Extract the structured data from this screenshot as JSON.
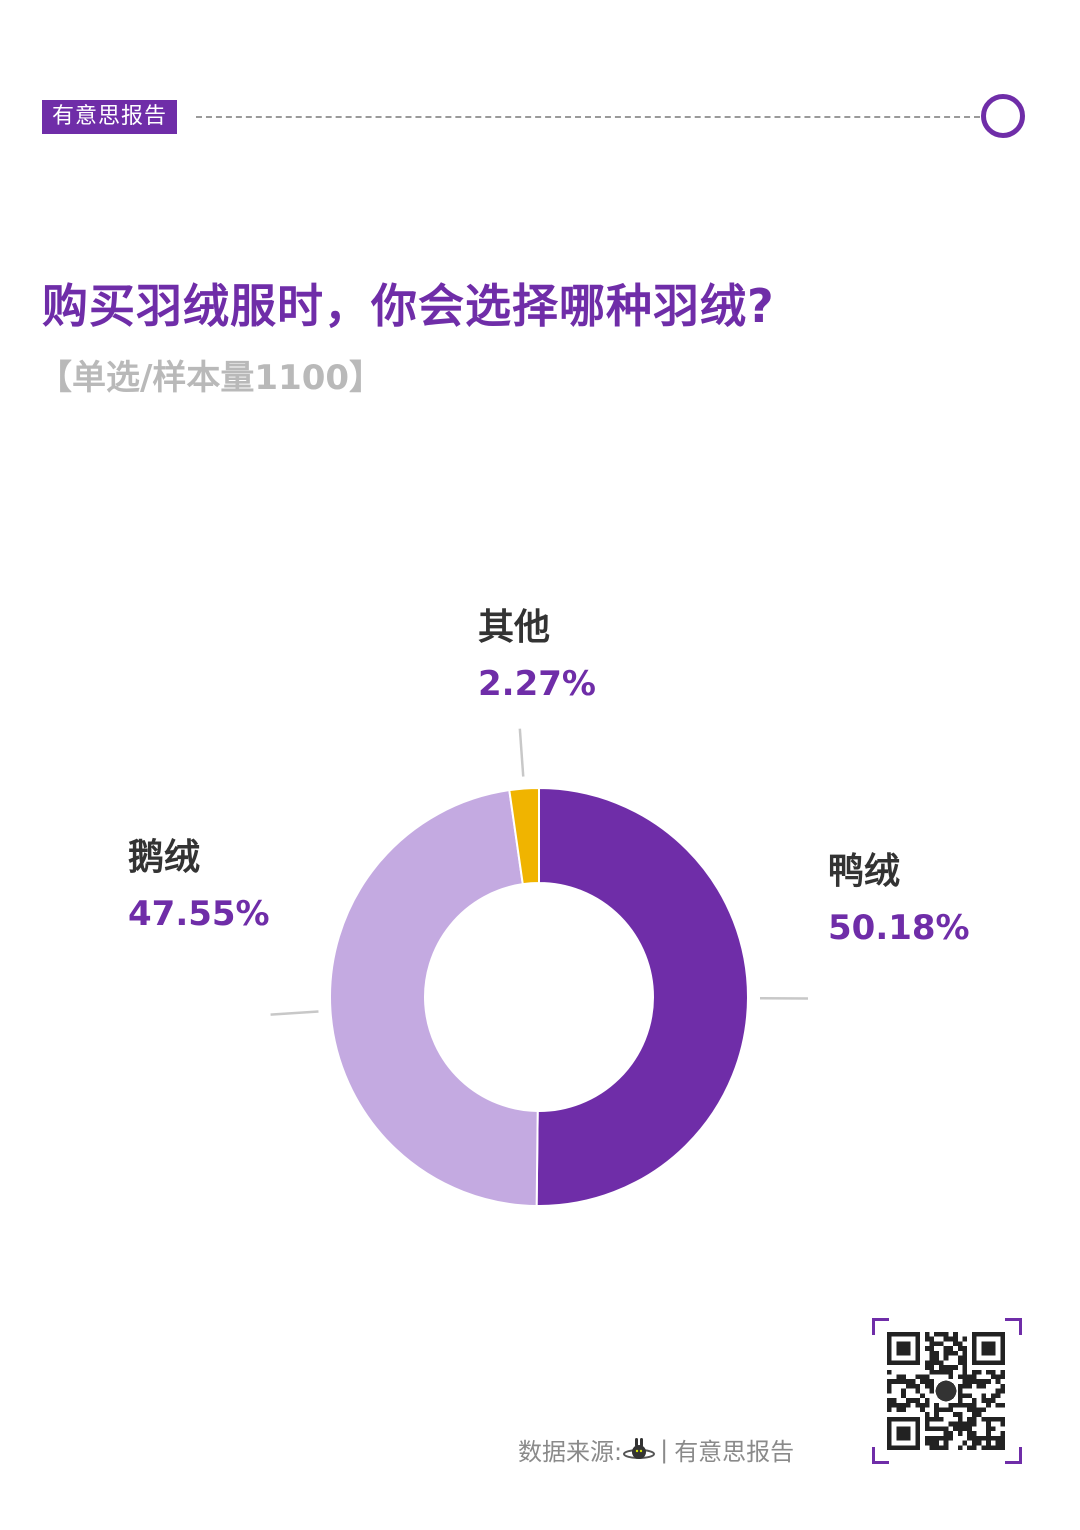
{
  "header": {
    "brand_tag": "有意思报告"
  },
  "title": "购买羽绒服时，你会选择哪种羽绒?",
  "subtitle": "【单选/样本量1100】",
  "colors": {
    "accent": "#6f2da8",
    "light_purple": "#c4aae1",
    "yellow": "#f0b400",
    "leader_line": "#c8c8c8"
  },
  "chart_data": {
    "type": "pie",
    "style": "donut",
    "slices": [
      {
        "name": "鸭绒",
        "value": 50.18,
        "label": "50.18%",
        "color": "#6f2da8"
      },
      {
        "name": "鹅绒",
        "value": 47.55,
        "label": "47.55%",
        "color": "#c4aae1"
      },
      {
        "name": "其他",
        "value": 2.27,
        "label": "2.27%",
        "color": "#f0b400"
      }
    ],
    "legend": "none"
  },
  "footer": {
    "source_label": "数据来源:",
    "source_name": "有意思报告",
    "logo_icon": "rabbit-planet-icon",
    "qr_icon": "qr-code-icon"
  }
}
